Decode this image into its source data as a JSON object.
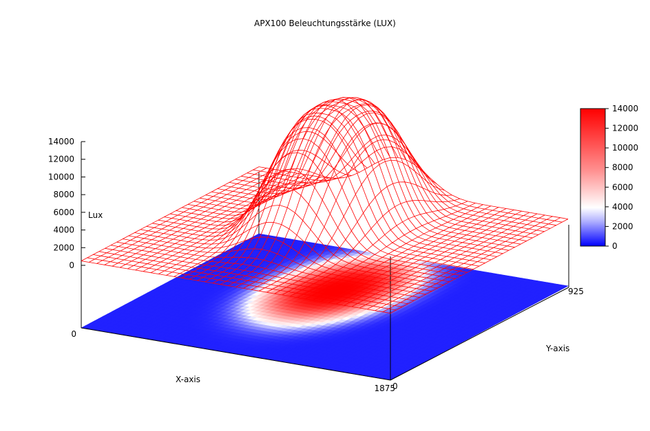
{
  "chart_data": {
    "type": "surface",
    "title": "APX100 Beleuchtungsstärke (LUX)",
    "xlabel": "X-axis",
    "ylabel": "Y-axis",
    "zlabel": "Lux",
    "xlim": [
      0,
      1875
    ],
    "ylim": [
      0,
      925
    ],
    "zlim": [
      0,
      14000
    ],
    "x_ticks": [
      {
        "value": 0,
        "label": "0"
      },
      {
        "value": 1875,
        "label": "1875"
      }
    ],
    "y_ticks": [
      {
        "value": 0,
        "label": "0"
      },
      {
        "value": 925,
        "label": "925"
      }
    ],
    "z_ticks": [
      "0",
      "2000",
      "4000",
      "6000",
      "8000",
      "10000",
      "12000",
      "14000"
    ],
    "colorbar": {
      "ticks": [
        "0",
        "2000",
        "4000",
        "6000",
        "8000",
        "10000",
        "12000",
        "14000"
      ],
      "colors": [
        "#0000ff",
        "#ffffff",
        "#ff0000"
      ]
    },
    "surface": {
      "wire_color": "#ff0000",
      "peak_lux": 14000,
      "base_lux": 500,
      "peak_center": [
        850,
        600
      ],
      "spread": [
        330,
        300
      ]
    }
  }
}
